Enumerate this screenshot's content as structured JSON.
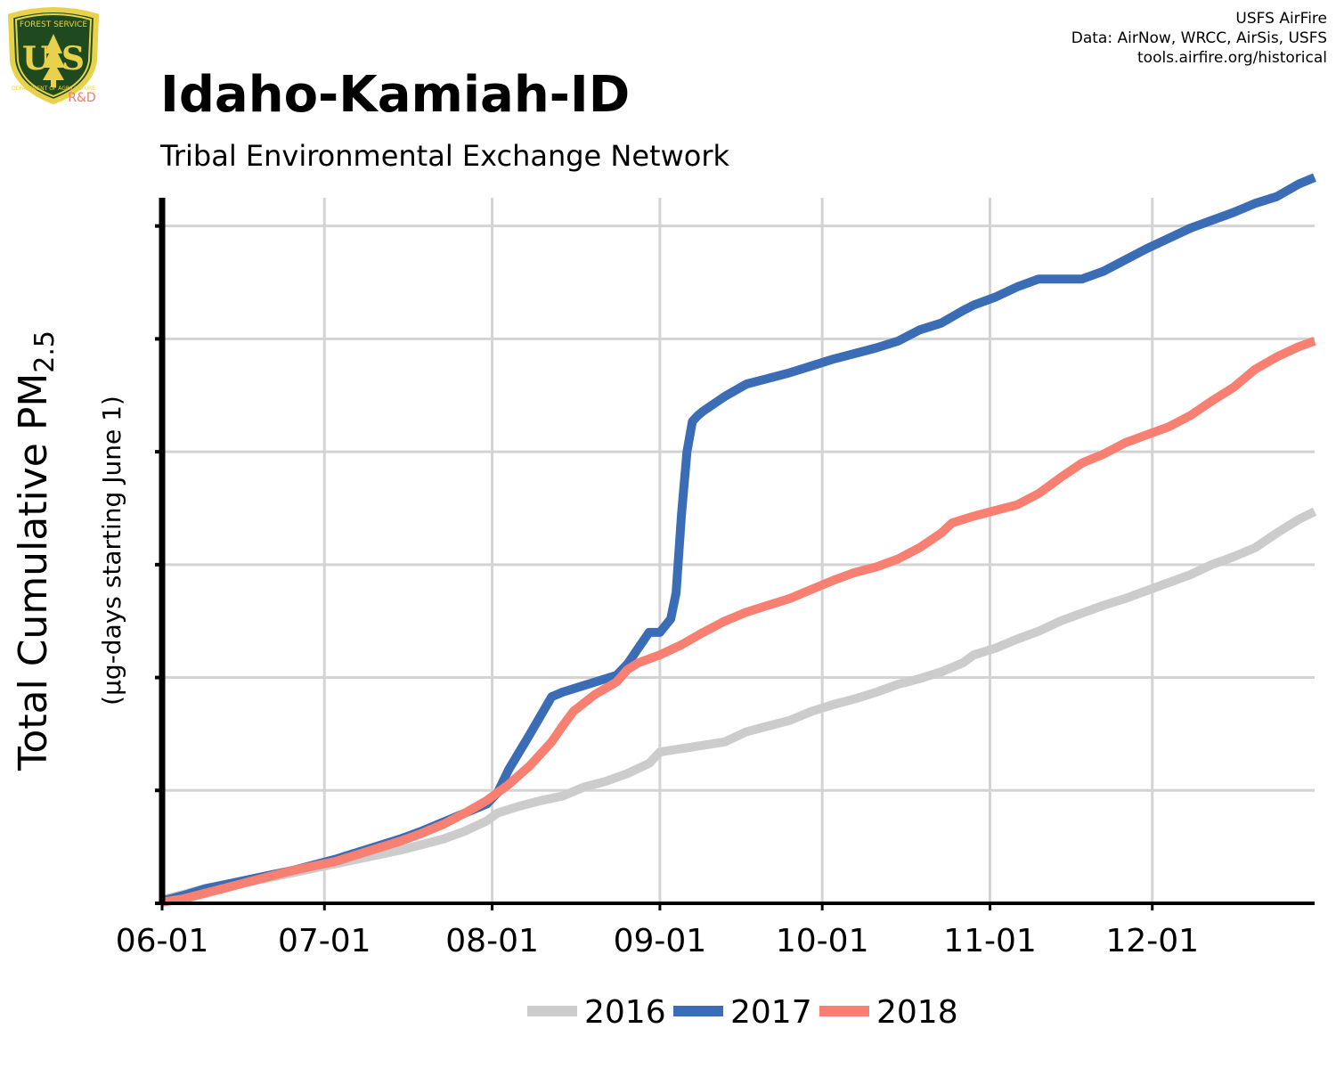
{
  "logo": {
    "top_text": "FOREST SERVICE",
    "initials": "U S",
    "bottom_text": "DEPARTMENT OF AGRICULTURE",
    "badge": "R&D",
    "shield_color": "#1f4a1f",
    "rim_color": "#e8d24a",
    "badge_color": "#f07c6c"
  },
  "credits": {
    "line1": "USFS AirFire",
    "line2": "Data: AirNow, WRCC, AirSis, USFS",
    "line3": "tools.airfire.org/historical"
  },
  "title": "Idaho-Kamiah-ID",
  "subtitle": "Tribal Environmental Exchange Network",
  "chart_data": {
    "type": "line",
    "ylabel_main": "Total Cumulative PM",
    "ylabel_sub": "2.5",
    "ylabel_units": "(µg-days starting June 1)",
    "x_ticks": [
      "06-01",
      "07-01",
      "08-01",
      "09-01",
      "10-01",
      "11-01",
      "12-01"
    ],
    "x_tick_days": [
      0,
      30,
      61,
      92,
      122,
      153,
      183
    ],
    "xlim": [
      0,
      213
    ],
    "ylim": [
      0,
      6.25
    ],
    "y_ticks": [
      0,
      1,
      2,
      3,
      4,
      5,
      6
    ],
    "y_tick_labels_shown": false,
    "grid": true,
    "legend_position": "bottom",
    "x_unit": "days since June 1",
    "series": [
      {
        "name": "2016",
        "color": "#cccccc",
        "x": [
          0,
          4,
          8,
          12,
          16,
          20,
          24,
          28,
          32,
          36,
          40,
          44,
          48,
          52,
          56,
          60,
          62,
          66,
          70,
          74,
          78,
          82,
          86,
          90,
          92,
          96,
          100,
          104,
          108,
          112,
          116,
          120,
          124,
          128,
          132,
          136,
          140,
          144,
          148,
          150,
          154,
          158,
          162,
          166,
          170,
          174,
          178,
          182,
          186,
          190,
          194,
          198,
          202,
          206,
          210,
          213
        ],
        "y": [
          0.03,
          0.08,
          0.13,
          0.16,
          0.19,
          0.23,
          0.27,
          0.31,
          0.35,
          0.39,
          0.43,
          0.47,
          0.52,
          0.57,
          0.64,
          0.73,
          0.8,
          0.86,
          0.91,
          0.95,
          1.03,
          1.08,
          1.15,
          1.24,
          1.34,
          1.37,
          1.4,
          1.43,
          1.52,
          1.57,
          1.62,
          1.7,
          1.76,
          1.81,
          1.87,
          1.94,
          1.99,
          2.05,
          2.13,
          2.2,
          2.26,
          2.34,
          2.41,
          2.5,
          2.57,
          2.64,
          2.7,
          2.77,
          2.84,
          2.91,
          3.0,
          3.07,
          3.15,
          3.28,
          3.4,
          3.47
        ]
      },
      {
        "name": "2017",
        "color": "#3a6db5",
        "x": [
          0,
          4,
          8,
          12,
          16,
          20,
          24,
          28,
          32,
          36,
          40,
          44,
          48,
          52,
          56,
          60,
          62,
          64,
          68,
          72,
          74,
          76,
          80,
          84,
          86,
          88,
          90,
          92,
          94,
          95,
          96,
          97,
          98,
          99,
          100,
          104,
          108,
          112,
          116,
          120,
          124,
          128,
          132,
          136,
          140,
          144,
          148,
          150,
          154,
          158,
          162,
          166,
          170,
          174,
          178,
          182,
          186,
          190,
          194,
          198,
          202,
          206,
          210,
          213
        ],
        "y": [
          0.02,
          0.07,
          0.13,
          0.17,
          0.21,
          0.25,
          0.29,
          0.34,
          0.39,
          0.45,
          0.51,
          0.57,
          0.64,
          0.72,
          0.8,
          0.88,
          0.98,
          1.18,
          1.5,
          1.83,
          1.87,
          1.9,
          1.96,
          2.02,
          2.12,
          2.26,
          2.4,
          2.4,
          2.52,
          2.75,
          3.45,
          4.0,
          4.27,
          4.32,
          4.36,
          4.49,
          4.6,
          4.65,
          4.7,
          4.76,
          4.82,
          4.87,
          4.92,
          4.98,
          5.08,
          5.14,
          5.25,
          5.3,
          5.37,
          5.46,
          5.53,
          5.53,
          5.53,
          5.6,
          5.7,
          5.8,
          5.89,
          5.98,
          6.05,
          6.12,
          6.2,
          6.26,
          6.37,
          6.43
        ]
      },
      {
        "name": "2018",
        "color": "#f88072",
        "x": [
          0,
          4,
          8,
          12,
          16,
          20,
          24,
          28,
          32,
          36,
          40,
          44,
          48,
          52,
          56,
          60,
          64,
          68,
          72,
          74,
          76,
          80,
          84,
          86,
          88,
          92,
          96,
          100,
          104,
          108,
          112,
          116,
          120,
          124,
          128,
          132,
          136,
          140,
          144,
          146,
          150,
          154,
          158,
          162,
          166,
          170,
          174,
          178,
          182,
          186,
          190,
          194,
          198,
          202,
          206,
          210,
          213
        ],
        "y": [
          0.01,
          0.04,
          0.09,
          0.14,
          0.19,
          0.24,
          0.29,
          0.33,
          0.37,
          0.43,
          0.49,
          0.55,
          0.62,
          0.7,
          0.8,
          0.91,
          1.05,
          1.22,
          1.43,
          1.57,
          1.7,
          1.85,
          1.96,
          2.07,
          2.13,
          2.2,
          2.29,
          2.4,
          2.5,
          2.58,
          2.64,
          2.7,
          2.78,
          2.86,
          2.93,
          2.98,
          3.05,
          3.15,
          3.28,
          3.37,
          3.43,
          3.48,
          3.53,
          3.63,
          3.77,
          3.9,
          3.98,
          4.08,
          4.15,
          4.22,
          4.32,
          4.45,
          4.57,
          4.73,
          4.84,
          4.93,
          4.98
        ]
      }
    ]
  }
}
